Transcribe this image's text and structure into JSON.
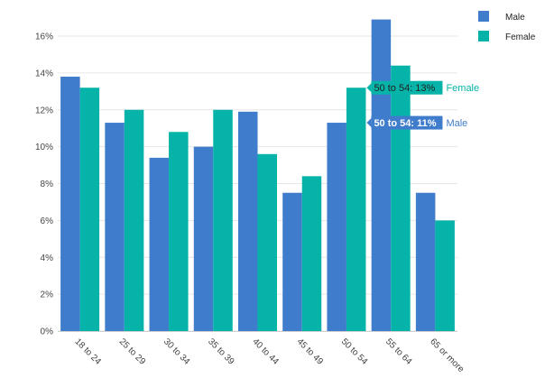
{
  "chart_data": {
    "type": "bar",
    "categories": [
      "18 to 24",
      "25 to 29",
      "30 to 34",
      "35 to 39",
      "40 to 44",
      "45 to 49",
      "50 to 54",
      "55 to 64",
      "65 or more"
    ],
    "series": [
      {
        "name": "Male",
        "color": "#3f7ccc",
        "values": [
          13.8,
          11.3,
          9.4,
          10.0,
          11.9,
          7.5,
          11.3,
          16.9,
          7.5
        ]
      },
      {
        "name": "Female",
        "color": "#06b3a8",
        "values": [
          13.2,
          12.0,
          10.8,
          12.0,
          9.6,
          8.4,
          13.2,
          14.4,
          6.0
        ]
      }
    ],
    "y_ticks": [
      "0%",
      "2%",
      "4%",
      "6%",
      "8%",
      "10%",
      "12%",
      "14%",
      "16%"
    ],
    "ylim": [
      0,
      17.5
    ],
    "y_tick_step": 2,
    "grid": true,
    "legend_position": "top-right",
    "x_tick_rotation": "45deg",
    "tooltips": [
      {
        "text": "50 to 54: 13%",
        "series_label": "Female",
        "series_index": 1,
        "category_index": 6,
        "value": 13.2,
        "bg_color": "#06b3a8",
        "text_color": "#222222"
      },
      {
        "text": "50 to 54: 11%",
        "series_label": "Male",
        "series_index": 0,
        "category_index": 6,
        "value": 11.3,
        "bg_color": "#3f7ccc",
        "text_color": "#ffffff"
      }
    ]
  }
}
